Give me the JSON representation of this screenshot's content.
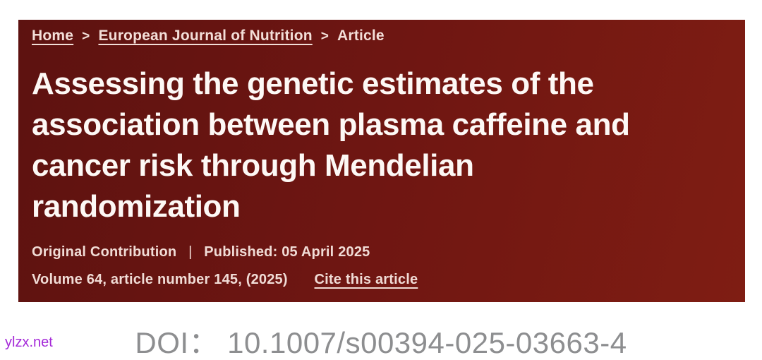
{
  "hero": {
    "breadcrumb": {
      "separator": ">",
      "items": [
        {
          "label": "Home",
          "type": "link"
        },
        {
          "label": "European Journal of Nutrition",
          "type": "link"
        },
        {
          "label": "Article",
          "type": "current"
        }
      ]
    },
    "title_lines": [
      "Assessing the genetic estimates of the",
      "association between plasma caffeine and",
      "cancer risk through Mendelian",
      "randomization"
    ],
    "meta": {
      "article_type": "Original Contribution",
      "divider": "|",
      "published": "Published: 05 April 2025",
      "volume_info": "Volume 64, article number 145, (2025)",
      "cite_link": "Cite this article"
    }
  },
  "doi": {
    "label": "DOI：",
    "value": "10.1007/s00394-025-03663-4"
  },
  "watermark": {
    "text": "ylzx.net"
  },
  "colors": {
    "banner_red_dark": "#5d1210",
    "banner_red_light": "#7f1d13",
    "banner_text": "#f1dcd6",
    "title_text": "#fdf8f5",
    "doi_text": "#8d8e90",
    "watermark_purple": "#a428d8"
  }
}
